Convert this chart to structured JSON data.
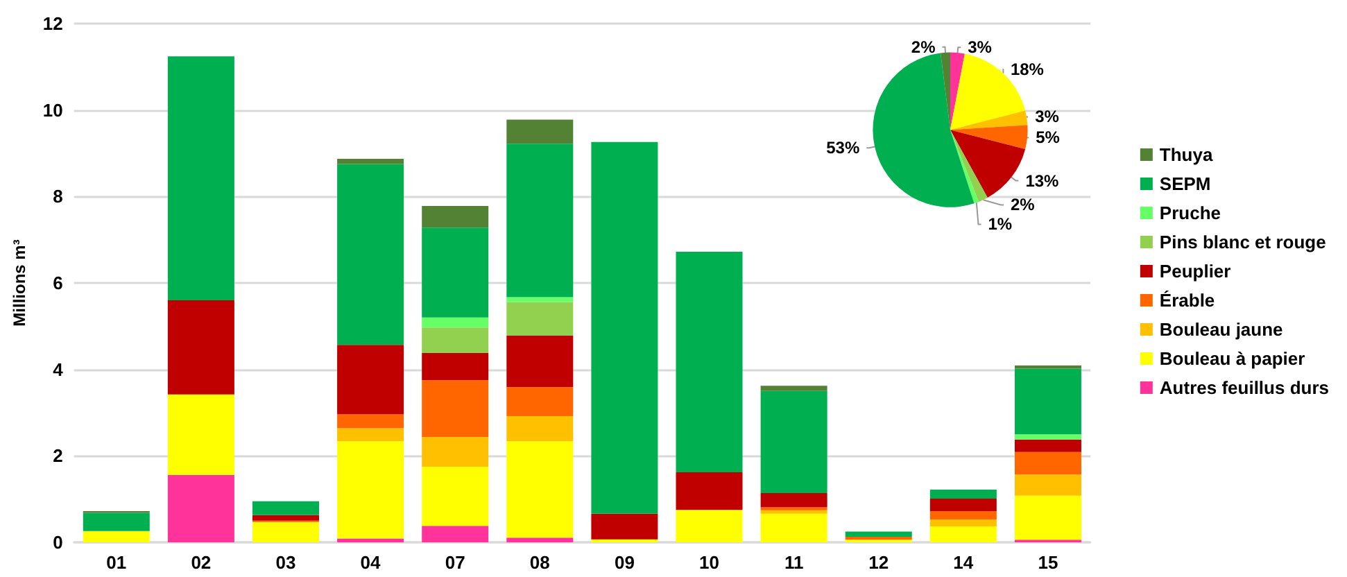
{
  "chart_data": [
    {
      "type": "bar",
      "stacked": true,
      "ylabel": "Millions m³",
      "categories": [
        "01",
        "02",
        "03",
        "04",
        "07",
        "08",
        "09",
        "10",
        "11",
        "12",
        "14",
        "15"
      ],
      "ylim": [
        0,
        12
      ],
      "yticks": [
        0,
        2,
        4,
        6,
        8,
        10,
        12
      ],
      "grid": "y",
      "legend": "right",
      "series": [
        {
          "name": "Autres feuillus durs",
          "color": "#ff3399",
          "values": [
            0,
            1.56,
            0,
            0.09,
            0.38,
            0.11,
            0,
            0,
            0,
            0,
            0,
            0.06
          ]
        },
        {
          "name": "Bouleau à papier",
          "color": "#ffff00",
          "values": [
            0.26,
            1.86,
            0.47,
            2.25,
            1.37,
            2.23,
            0.07,
            0.75,
            0.66,
            0.06,
            0.37,
            1.02
          ]
        },
        {
          "name": "Bouleau jaune",
          "color": "#ffc000",
          "values": [
            0,
            0,
            0,
            0.3,
            0.69,
            0.58,
            0,
            0,
            0.08,
            0,
            0.16,
            0.49
          ]
        },
        {
          "name": "Érable",
          "color": "#ff6600",
          "values": [
            0,
            0,
            0.03,
            0.32,
            1.31,
            0.67,
            0,
            0,
            0.07,
            0.07,
            0.19,
            0.52
          ]
        },
        {
          "name": "Peuplier",
          "color": "#c00000",
          "values": [
            0,
            2.18,
            0.13,
            1.61,
            0.63,
            1.19,
            0.59,
            0.87,
            0.33,
            0,
            0.29,
            0.29
          ]
        },
        {
          "name": "Pins blanc et rouge",
          "color": "#92d050",
          "values": [
            0,
            0,
            0,
            0,
            0.59,
            0.78,
            0,
            0,
            0,
            0,
            0,
            0
          ]
        },
        {
          "name": "Pruche",
          "color": "#66ff66",
          "values": [
            0,
            0,
            0,
            0,
            0.23,
            0.11,
            0,
            0,
            0,
            0,
            0,
            0.12
          ]
        },
        {
          "name": "SEPM",
          "color": "#00b050",
          "values": [
            0.42,
            5.64,
            0.32,
            4.18,
            2.08,
            3.55,
            8.6,
            5.1,
            2.36,
            0.12,
            0.21,
            1.52
          ]
        },
        {
          "name": "Thuya",
          "color": "#548235",
          "values": [
            0.04,
            0,
            0,
            0.12,
            0.5,
            0.56,
            0,
            0,
            0.12,
            0,
            0,
            0.07
          ]
        }
      ]
    },
    {
      "type": "pie",
      "categories": [
        null,
        null,
        null,
        null,
        null,
        null,
        null,
        null,
        null
      ],
      "values": [
        3,
        18,
        3,
        5,
        13,
        2,
        1,
        53,
        2
      ],
      "value_labels": [
        "3%",
        "18%",
        "3%",
        "5%",
        "13%",
        "2%",
        "1%",
        "53%",
        "2%"
      ],
      "colors": [
        "#ff3399",
        "#ffff00",
        "#ffc000",
        "#ff6600",
        "#c00000",
        "#92d050",
        "#66ff66",
        "#00b050",
        "#548235"
      ]
    }
  ]
}
